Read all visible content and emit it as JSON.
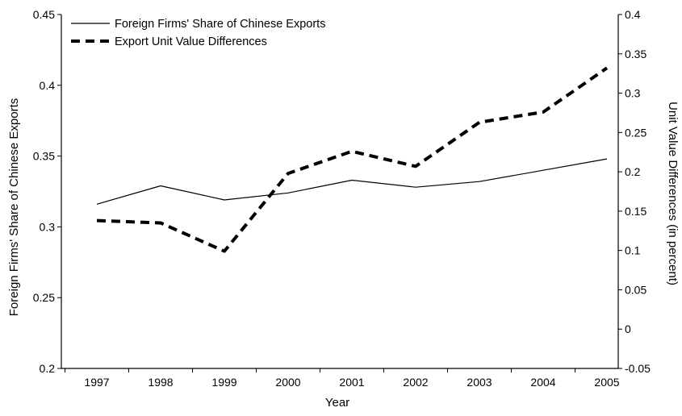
{
  "chart_data": {
    "type": "line",
    "title": "",
    "xlabel": "Year",
    "ylabel_left": "Foreign Firms' Share of Chinese Exports",
    "ylabel_right": "Unit Value Differences (in percent)",
    "categories": [
      "1997",
      "1998",
      "1999",
      "2000",
      "2001",
      "2002",
      "2003",
      "2004",
      "2005"
    ],
    "ylim_left": [
      0.2,
      0.45
    ],
    "yticks_left": [
      "0.2",
      "0.25",
      "0.3",
      "0.35",
      "0.4",
      "0.45"
    ],
    "ylim_right": [
      -0.05,
      0.4
    ],
    "yticks_right": [
      "-0.05",
      "0",
      "0.05",
      "0.1",
      "0.15",
      "0.2",
      "0.25",
      "0.3",
      "0.35",
      "0.4"
    ],
    "grid": false,
    "legend_position": "top-left",
    "series": [
      {
        "name": "Foreign Firms' Share of Chinese Exports",
        "axis": "left",
        "style": "solid",
        "color": "#000000",
        "values": [
          0.316,
          0.329,
          0.319,
          0.324,
          0.333,
          0.328,
          0.332,
          0.34,
          0.348
        ]
      },
      {
        "name": "Export Unit Value Differences",
        "axis": "right",
        "style": "dashed",
        "color": "#000000",
        "values": [
          0.138,
          0.135,
          0.099,
          0.198,
          0.226,
          0.207,
          0.263,
          0.276,
          0.332
        ]
      }
    ]
  }
}
